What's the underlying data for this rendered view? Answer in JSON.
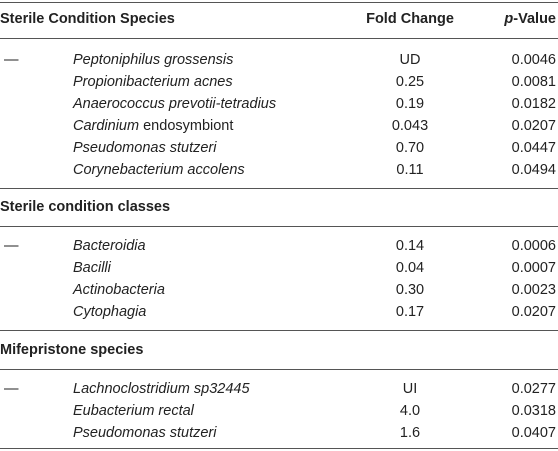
{
  "table": {
    "header": {
      "species_col": "Sterile Condition Species",
      "fold_col": "Fold Change",
      "p_prefix": "p",
      "p_suffix": "-Value"
    },
    "sections": [
      {
        "title": "",
        "rows": [
          {
            "dash": "—",
            "name_italic": "Peptoniphilus grossensis",
            "name_plain": "",
            "fold": "UD",
            "p": "0.0046"
          },
          {
            "dash": "",
            "name_italic": "Propionibacterium acnes",
            "name_plain": "",
            "fold": "0.25",
            "p": "0.0081"
          },
          {
            "dash": "",
            "name_italic": "Anaerococcus prevotii-tetradius",
            "name_plain": "",
            "fold": "0.19",
            "p": "0.0182"
          },
          {
            "dash": "",
            "name_italic": "Cardinium",
            "name_plain": " endosymbiont",
            "fold": "0.043",
            "p": "0.0207"
          },
          {
            "dash": "",
            "name_italic": "Pseudomonas stutzeri",
            "name_plain": "",
            "fold": "0.70",
            "p": "0.0447"
          },
          {
            "dash": "",
            "name_italic": "Corynebacterium accolens",
            "name_plain": "",
            "fold": "0.11",
            "p": "0.0494"
          }
        ]
      },
      {
        "title": "Sterile condition classes",
        "rows": [
          {
            "dash": "—",
            "name_italic": "Bacteroidia",
            "name_plain": "",
            "fold": "0.14",
            "p": "0.0006"
          },
          {
            "dash": "",
            "name_italic": "Bacilli",
            "name_plain": "",
            "fold": "0.04",
            "p": "0.0007"
          },
          {
            "dash": "",
            "name_italic": "Actinobacteria",
            "name_plain": "",
            "fold": "0.30",
            "p": "0.0023"
          },
          {
            "dash": "",
            "name_italic": "Cytophagia",
            "name_plain": "",
            "fold": "0.17",
            "p": "0.0207"
          }
        ]
      },
      {
        "title": "Mifepristone species",
        "rows": [
          {
            "dash": "—",
            "name_italic": "Lachnoclostridium sp32445",
            "name_plain": "",
            "fold": "UI",
            "p": "0.0277"
          },
          {
            "dash": "",
            "name_italic": "Eubacterium rectal",
            "name_plain": "",
            "fold": "4.0",
            "p": "0.0318"
          },
          {
            "dash": "",
            "name_italic": "Pseudomonas stutzeri",
            "name_plain": "",
            "fold": "1.6",
            "p": "0.0407"
          }
        ]
      }
    ]
  }
}
